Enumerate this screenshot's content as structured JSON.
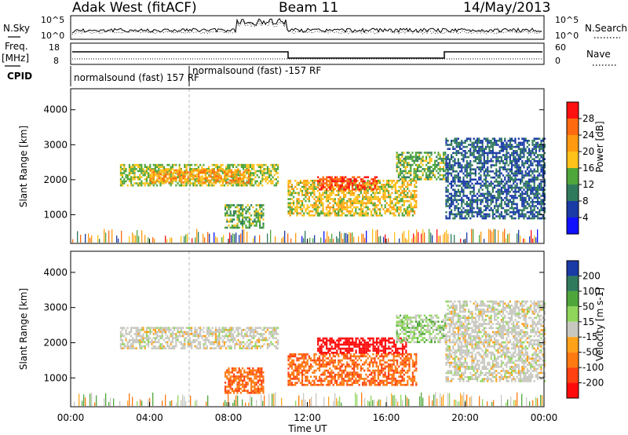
{
  "header": {
    "station": "Adak West (fitACF)",
    "beam": "Beam 11",
    "date": "14/May/2013"
  },
  "noise_panel": {
    "left_label": "N.Sky",
    "right_label": "N.Search",
    "left_ticks": [
      "10^5",
      "10^0"
    ],
    "right_ticks": [
      "10^5",
      "10^0"
    ]
  },
  "freq_panel": {
    "left_label_1": "Freq.",
    "left_label_2": "[MHz]",
    "right_label": "Nave",
    "left_ticks": [
      "18",
      "8"
    ],
    "right_ticks": [
      "60",
      "0"
    ]
  },
  "cpid": {
    "label": "CPID",
    "segments": [
      {
        "text": "normalsound (fast) 157 RF",
        "start_hour": 0
      },
      {
        "text": "normalsound (fast) -157 RF",
        "start_hour": 6
      }
    ]
  },
  "power_panel": {
    "ylabel": "Slant Range [km]",
    "colorbar_label": "Power [dB]",
    "colorbar_ticks": [
      "28",
      "24",
      "20",
      "16",
      "12",
      "8",
      "4"
    ],
    "colorbar_colors": [
      "#ff1010",
      "#ff6a10",
      "#ff9a10",
      "#ffc21a",
      "#4fa63a",
      "#2f7a5c",
      "#1a3aa6",
      "#1010ff"
    ]
  },
  "velocity_panel": {
    "ylabel": "Slant Range [km]",
    "colorbar_label": "Velocity [m s-1]",
    "colorbar_ticks": [
      "200",
      "100",
      "50",
      "15",
      "-15",
      "-50",
      "-100",
      "-200"
    ],
    "colorbar_colors": [
      "#1a3aa6",
      "#2f7a5c",
      "#4fa63a",
      "#8fd65a",
      "#c8c8c0",
      "#ffa21a",
      "#ff7a10",
      "#ff4010",
      "#ff0a0a"
    ]
  },
  "x_axis": {
    "label": "Time UT",
    "ticks": [
      "00:00",
      "04:00",
      "08:00",
      "12:00",
      "16:00",
      "20:00",
      "00:00"
    ]
  },
  "chart_data": [
    {
      "type": "heatmap",
      "title": "Adak West (fitACF) Beam 11 14/May/2013",
      "xlabel": "Time UT",
      "ylabel": "Slant Range [km]",
      "xlim_hours": [
        0,
        24
      ],
      "ylim": [
        180,
        4600
      ],
      "yticks": [
        1000,
        2000,
        3000,
        4000
      ],
      "colorbar": {
        "label": "Power [dB]",
        "range": [
          0,
          30
        ],
        "ticks": [
          4,
          8,
          12,
          16,
          20,
          24,
          28
        ]
      },
      "features": [
        {
          "start_hour": 2.5,
          "end_hour": 10.5,
          "range_km": [
            1850,
            2450
          ],
          "power_db": 14
        },
        {
          "start_hour": 4.0,
          "end_hour": 9.0,
          "range_km": [
            1900,
            2300
          ],
          "power_db": 20
        },
        {
          "start_hour": 7.8,
          "end_hour": 9.8,
          "range_km": [
            600,
            1300
          ],
          "power_db": 12
        },
        {
          "start_hour": 11.0,
          "end_hour": 17.5,
          "range_km": [
            1000,
            2000
          ],
          "power_db": 16
        },
        {
          "start_hour": 12.5,
          "end_hour": 15.5,
          "range_km": [
            1700,
            2100
          ],
          "power_db": 26
        },
        {
          "start_hour": 16.5,
          "end_hour": 19.0,
          "range_km": [
            2000,
            2800
          ],
          "power_db": 12
        },
        {
          "start_hour": 19.0,
          "end_hour": 24.0,
          "range_km": [
            900,
            3200
          ],
          "power_db": 6
        }
      ]
    },
    {
      "type": "heatmap",
      "xlabel": "Time UT",
      "ylabel": "Slant Range [km]",
      "xlim_hours": [
        0,
        24
      ],
      "ylim": [
        180,
        4600
      ],
      "yticks": [
        1000,
        2000,
        3000,
        4000
      ],
      "colorbar": {
        "label": "Velocity [m s-1]",
        "range": [
          -250,
          250
        ],
        "ticks": [
          -200,
          -100,
          -50,
          -15,
          15,
          50,
          100,
          200
        ]
      },
      "features": [
        {
          "start_hour": 2.5,
          "end_hour": 10.5,
          "range_km": [
            1850,
            2450
          ],
          "velocity": 0
        },
        {
          "start_hour": 7.8,
          "end_hour": 9.8,
          "range_km": [
            600,
            1300
          ],
          "velocity": -70
        },
        {
          "start_hour": 11.0,
          "end_hour": 17.5,
          "range_km": [
            800,
            1700
          ],
          "velocity": -70
        },
        {
          "start_hour": 12.5,
          "end_hour": 17.0,
          "range_km": [
            1700,
            2150
          ],
          "velocity": -200
        },
        {
          "start_hour": 16.5,
          "end_hour": 19.0,
          "range_km": [
            2000,
            2800
          ],
          "velocity": 20
        },
        {
          "start_hour": 19.0,
          "end_hour": 24.0,
          "range_km": [
            900,
            3200
          ],
          "velocity": 0
        }
      ]
    }
  ]
}
